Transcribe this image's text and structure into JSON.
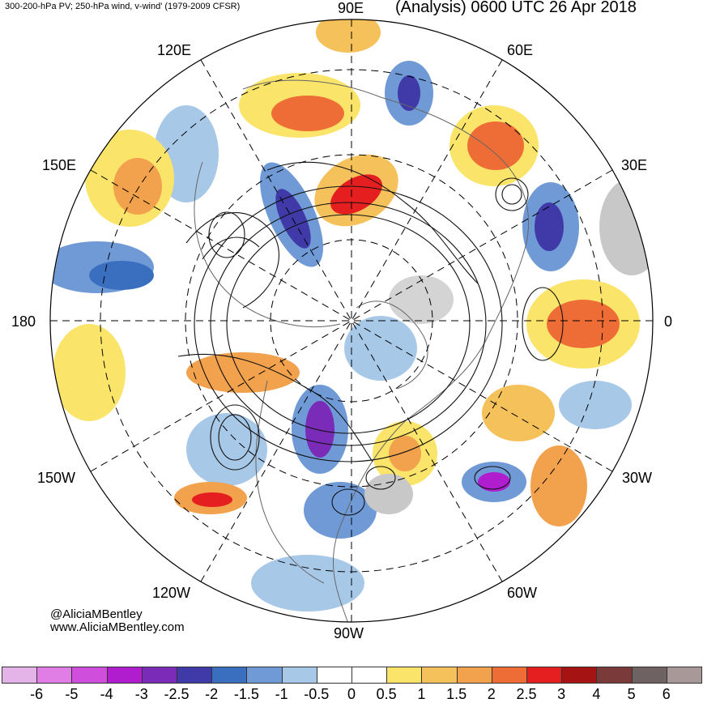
{
  "header": {
    "left_title": "300-200-hPa PV; 250-hPa wind, v-wind' (1979-2009 CFSR)",
    "right_title": "(Analysis) 0600 UTC 26 Apr 2018"
  },
  "longitude_labels": {
    "e90": "90E",
    "e60": "60E",
    "e30": "30E",
    "e0": "0",
    "w30": "30W",
    "w60": "60W",
    "w90": "90W",
    "w120": "120W",
    "w150": "150W",
    "w180": "180",
    "e150": "150E",
    "e120": "120E"
  },
  "credit": {
    "handle": "@AliciaMBentley",
    "website": "www.AliciaMBentley.com"
  },
  "colorbar": {
    "ticks": [
      "-6",
      "-5",
      "-4",
      "-3",
      "-2.5",
      "-2",
      "-1.5",
      "-1",
      "-0.5",
      "0",
      "0.5",
      "1",
      "1.5",
      "2",
      "2.5",
      "3",
      "4",
      "5",
      "6"
    ],
    "colors": [
      "#e4b4e8",
      "#e07ee6",
      "#cf4fdc",
      "#b01dcf",
      "#7a2cb8",
      "#3f3aa8",
      "#3a6fc0",
      "#6f9ad6",
      "#a8c8e8",
      "#ffffff",
      "#ffffff",
      "#fbe46a",
      "#f4c15a",
      "#f2a14d",
      "#ee6d37",
      "#e51f1f",
      "#a51313",
      "#7a3a3a",
      "#6e6262",
      "#a89898"
    ]
  }
}
